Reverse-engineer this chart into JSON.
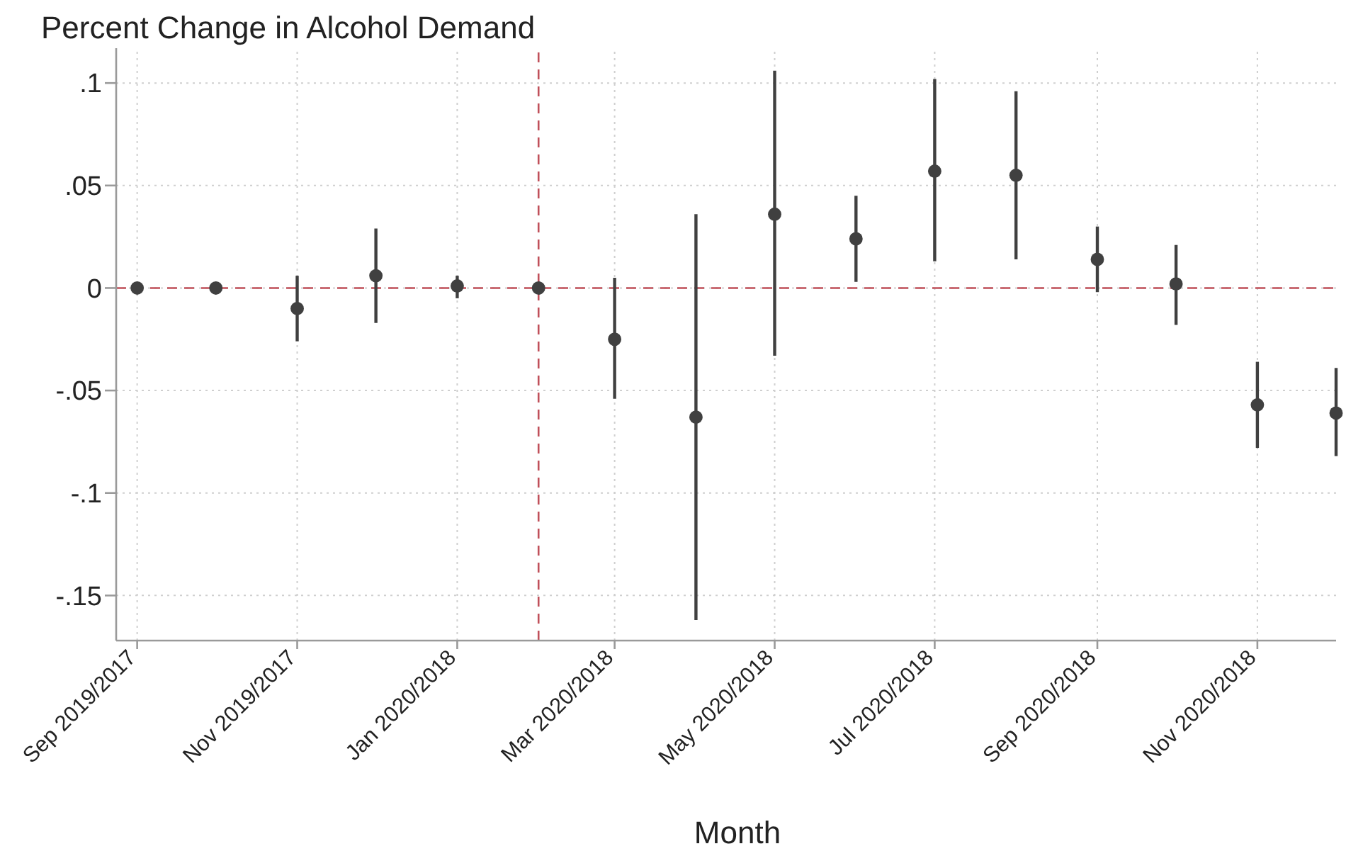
{
  "chart_data": {
    "type": "scatter",
    "title": "Percent Change in Alcohol Demand",
    "xlabel": "Month",
    "x": [
      "2019-09",
      "2019-10",
      "2019-11",
      "2019-12",
      "2020-01",
      "2020-02",
      "2020-03",
      "2020-04",
      "2020-05",
      "2020-06",
      "2020-07",
      "2020-08",
      "2020-09",
      "2020-10",
      "2020-11",
      "2020-12"
    ],
    "values": [
      0,
      0,
      -0.01,
      0.006,
      0.001,
      0,
      -0.025,
      -0.063,
      0.036,
      0.024,
      0.057,
      0.055,
      0.014,
      0.002,
      -0.057,
      -0.061
    ],
    "errors": [
      null,
      null,
      [
        -0.026,
        0.006
      ],
      [
        -0.017,
        0.029
      ],
      [
        -0.005,
        0.006
      ],
      null,
      [
        -0.054,
        0.005
      ],
      [
        -0.162,
        0.036
      ],
      [
        -0.033,
        0.106
      ],
      [
        0.003,
        0.045
      ],
      [
        0.013,
        0.102
      ],
      [
        0.014,
        0.096
      ],
      [
        -0.002,
        0.03
      ],
      [
        -0.018,
        0.021
      ],
      [
        -0.078,
        -0.036
      ],
      [
        -0.082,
        -0.039
      ]
    ],
    "color": "#404040",
    "marker": "circle",
    "xlim": [
      "2019-08-24",
      "2020-12"
    ],
    "xticks": [
      {
        "value": "2019-09",
        "label": "Sep 2019/2017"
      },
      {
        "value": "2019-11",
        "label": "Nov 2019/2017"
      },
      {
        "value": "2020-01",
        "label": "Jan 2020/2018"
      },
      {
        "value": "2020-03",
        "label": "Mar 2020/2018"
      },
      {
        "value": "2020-05",
        "label": "May 2020/2018"
      },
      {
        "value": "2020-07",
        "label": "Jul 2020/2018"
      },
      {
        "value": "2020-09",
        "label": "Sep 2020/2018"
      },
      {
        "value": "2020-11",
        "label": "Nov 2020/2018"
      }
    ],
    "ylim": [
      -0.172,
      0.117
    ],
    "yticks": [
      {
        "value": -0.15,
        "label": "-.15"
      },
      {
        "value": -0.1,
        "label": "-.1"
      },
      {
        "value": -0.05,
        "label": "-.05"
      },
      0,
      {
        "value": 0.05,
        "label": ".05"
      },
      {
        "value": 0.1,
        "label": ".1"
      }
    ],
    "grid": true,
    "ref_lines": [
      {
        "axis": "y",
        "value": 0,
        "color": "#c0505a",
        "line_style": "dashed"
      },
      {
        "axis": "x",
        "value": "2020-02",
        "color": "#c0505a",
        "line_style": "dashed"
      }
    ]
  }
}
